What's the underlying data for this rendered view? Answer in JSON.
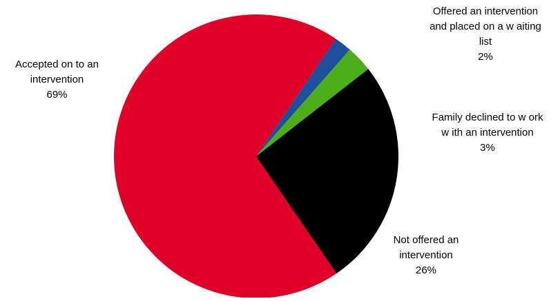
{
  "chart_data": {
    "type": "pie",
    "title": "",
    "slices": [
      {
        "label_lines": [
          "Offered an intervention",
          "and placed on a w aiting",
          "list"
        ],
        "value": 2,
        "value_label": "2%",
        "color": "#1f4e9c"
      },
      {
        "label_lines": [
          "Family declined to w ork",
          "w ith an intervention"
        ],
        "value": 3,
        "value_label": "3%",
        "color": "#4caf1a"
      },
      {
        "label_lines": [
          "Not offered an",
          "intervention"
        ],
        "value": 26,
        "value_label": "26%",
        "color": "#000000"
      },
      {
        "label_lines": [
          "Accepted on to an",
          "intervention"
        ],
        "value": 69,
        "value_label": "69%",
        "color": "#e00027"
      }
    ],
    "legend": "none"
  }
}
